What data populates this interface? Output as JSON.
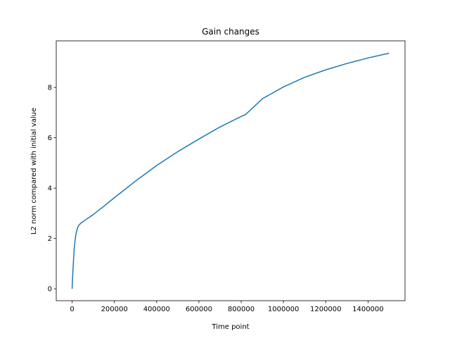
{
  "chart_data": {
    "type": "line",
    "title": "Gain changes",
    "xlabel": "Time point",
    "ylabel": "L2 norm compared with initial value",
    "xlim": [
      -75000,
      1575000
    ],
    "ylim": [
      -0.47,
      9.85
    ],
    "xticks": [
      0,
      200000,
      400000,
      600000,
      800000,
      1000000,
      1200000,
      1400000
    ],
    "xtick_labels": [
      "0",
      "200000",
      "400000",
      "600000",
      "800000",
      "1000000",
      "1200000",
      "1400000"
    ],
    "yticks": [
      0,
      2,
      4,
      6,
      8
    ],
    "ytick_labels": [
      "0",
      "2",
      "4",
      "6",
      "8"
    ],
    "grid": false,
    "legend": "none",
    "series": [
      {
        "color": "#1f77b4",
        "x": [
          0,
          2000,
          5000,
          10000,
          15000,
          20000,
          25000,
          30000,
          40000,
          60000,
          100000,
          150000,
          200000,
          300000,
          400000,
          500000,
          600000,
          700000,
          800000,
          820000,
          850000,
          900000,
          1000000,
          1100000,
          1200000,
          1300000,
          1400000,
          1500000
        ],
        "y": [
          0.0,
          0.4,
          0.9,
          1.6,
          2.0,
          2.25,
          2.4,
          2.5,
          2.6,
          2.72,
          2.95,
          3.28,
          3.62,
          4.28,
          4.9,
          5.45,
          5.95,
          6.43,
          6.85,
          6.92,
          7.15,
          7.55,
          8.02,
          8.4,
          8.7,
          8.95,
          9.17,
          9.36
        ]
      }
    ]
  }
}
